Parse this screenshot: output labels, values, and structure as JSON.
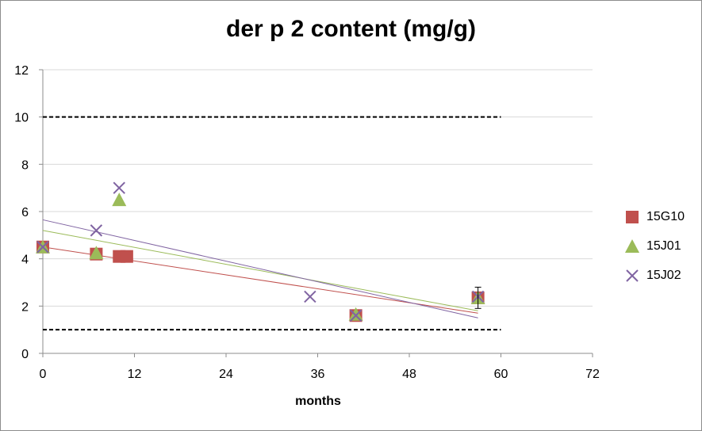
{
  "chart_data": {
    "type": "scatter",
    "title": "der p 2 content (mg/g)",
    "xlabel": "months",
    "ylabel": "",
    "xlim": [
      0,
      72
    ],
    "ylim": [
      0,
      12
    ],
    "xticks": [
      0,
      12,
      24,
      36,
      48,
      60,
      72
    ],
    "yticks": [
      0,
      2,
      4,
      6,
      8,
      10,
      12
    ],
    "grid": "horizontal",
    "legend": "right",
    "reference_lines": [
      {
        "y": 10,
        "x_range": [
          0,
          60
        ],
        "style": "dashed",
        "color": "#000000"
      },
      {
        "y": 1,
        "x_range": [
          0,
          60
        ],
        "style": "dashed",
        "color": "#000000"
      }
    ],
    "series": [
      {
        "name": "15G10",
        "marker": "square",
        "color": "#c0504d",
        "points": [
          [
            0,
            4.5
          ],
          [
            7,
            4.2
          ],
          [
            10,
            4.1
          ],
          [
            11,
            4.1
          ],
          [
            41,
            1.6
          ],
          [
            57,
            2.35
          ]
        ],
        "trendline": {
          "x": [
            0,
            57
          ],
          "y": [
            4.5,
            1.7
          ],
          "color": "#c0504d"
        }
      },
      {
        "name": "15J01",
        "marker": "triangle",
        "color": "#9bbb59",
        "points": [
          [
            0,
            4.5
          ],
          [
            7,
            4.25
          ],
          [
            10,
            6.5
          ],
          [
            41,
            1.65
          ],
          [
            57,
            2.35
          ]
        ],
        "trendline": {
          "x": [
            0,
            57
          ],
          "y": [
            5.2,
            1.8
          ],
          "color": "#9bbb59"
        }
      },
      {
        "name": "15J02",
        "marker": "x",
        "color": "#8064a2",
        "points": [
          [
            0,
            4.5
          ],
          [
            7,
            5.2
          ],
          [
            10,
            7.0
          ],
          [
            35,
            2.4
          ],
          [
            41,
            1.6
          ],
          [
            57,
            2.4
          ]
        ],
        "trendline": {
          "x": [
            0,
            57
          ],
          "y": [
            5.65,
            1.5
          ],
          "color": "#8064a2"
        },
        "error_bar": {
          "x": 57,
          "low": 1.9,
          "high": 2.8
        }
      }
    ]
  }
}
